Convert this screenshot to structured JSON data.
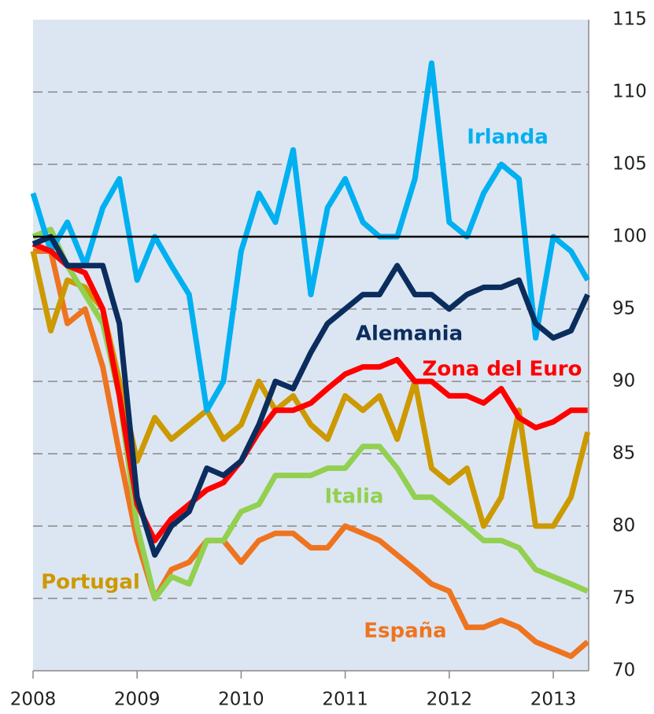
{
  "chart_data": {
    "type": "line",
    "x": [
      2008,
      2008.17,
      2008.33,
      2008.5,
      2008.67,
      2008.83,
      2009,
      2009.17,
      2009.33,
      2009.5,
      2009.67,
      2009.83,
      2010,
      2010.17,
      2010.33,
      2010.5,
      2010.67,
      2010.83,
      2011,
      2011.17,
      2011.33,
      2011.5,
      2011.67,
      2011.83,
      2012,
      2012.17,
      2012.33,
      2012.5,
      2012.67,
      2012.83,
      2013,
      2013.17,
      2013.33
    ],
    "series": [
      {
        "name": "Irlanda",
        "color": "#00b0f0",
        "values": [
          103,
          99,
          101,
          98,
          102,
          104,
          97,
          100,
          98,
          96,
          88,
          90,
          99,
          103,
          101,
          106,
          96,
          102,
          104,
          101,
          100,
          100,
          104,
          112,
          101,
          100,
          103,
          105,
          104,
          93,
          100,
          99,
          97
        ]
      },
      {
        "name": "Alemania",
        "color": "#0b2d5e",
        "values": [
          99.5,
          100,
          98,
          98,
          98,
          94,
          82,
          78,
          80,
          81,
          84,
          83.5,
          84.5,
          87,
          90,
          89.5,
          92,
          94,
          95,
          96,
          96,
          98,
          96,
          96,
          95,
          96,
          96.5,
          96.5,
          97,
          94,
          93,
          93.5,
          96
        ]
      },
      {
        "name": "Zona del Euro",
        "color": "#ff0000",
        "values": [
          99.5,
          99,
          98,
          97.5,
          95,
          89,
          81.5,
          79,
          80.5,
          81.5,
          82.5,
          83,
          84.5,
          86.5,
          88,
          88,
          88.5,
          89.5,
          90.5,
          91,
          91,
          91.5,
          90,
          90,
          89,
          89,
          88.5,
          89.5,
          87.5,
          86.8,
          87.2,
          88,
          88
        ]
      },
      {
        "name": "Italia",
        "color": "#92d050",
        "values": [
          100,
          100.5,
          98,
          96,
          94,
          89,
          80,
          75,
          76.5,
          76,
          79,
          79,
          81,
          81.5,
          83.5,
          83.5,
          83.5,
          84,
          84,
          85.5,
          85.5,
          84,
          82,
          82,
          81,
          80,
          79,
          79,
          78.5,
          77,
          76.5,
          76,
          75.5
        ]
      },
      {
        "name": "Portugal",
        "color": "#cc9900",
        "values": [
          99,
          93.5,
          97,
          96.5,
          95,
          90,
          84.5,
          87.5,
          86,
          87,
          88,
          86,
          87,
          90,
          88,
          89,
          87,
          86,
          89,
          88,
          89,
          86,
          90,
          84,
          83,
          84,
          80,
          82,
          88,
          80,
          80,
          82,
          86.5
        ]
      },
      {
        "name": "España",
        "color": "#ee7420",
        "values": [
          99,
          99,
          94,
          95,
          91,
          85,
          79,
          75,
          77,
          77.5,
          79,
          79,
          77.5,
          79,
          79.5,
          79.5,
          78.5,
          78.5,
          80,
          79.5,
          79,
          78,
          77,
          76,
          75.5,
          73,
          73,
          73.5,
          73,
          72,
          71.5,
          71,
          72
        ]
      }
    ],
    "xlim": [
      2008,
      2013.34
    ],
    "xticks": [
      2008,
      2009,
      2010,
      2011,
      2012,
      2013
    ],
    "ylim": [
      70,
      115
    ],
    "yticks": [
      70,
      75,
      80,
      85,
      90,
      95,
      100,
      105,
      110,
      115
    ],
    "reference_line": 100,
    "grid": true,
    "background": "#dce6f2"
  }
}
